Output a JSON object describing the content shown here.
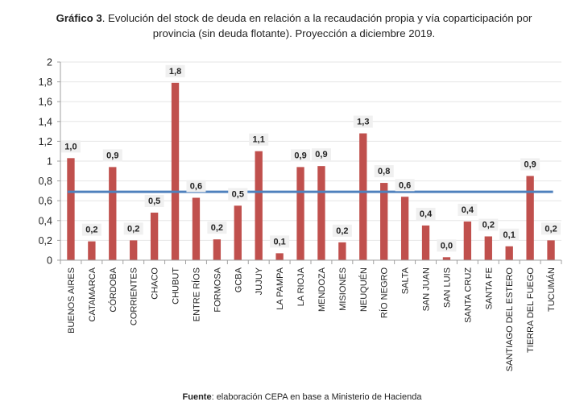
{
  "chart_data": {
    "type": "bar",
    "title_bold": "Gráfico 3",
    "title_line1": ". Evolución del stock de deuda en relación a la recaudación propia y vía coparticipación por",
    "title_line2": "provincia (sin deuda flotante). Proyección a diciembre 2019.",
    "xlabel": "",
    "ylabel": "",
    "ylim": [
      0,
      2
    ],
    "yticks": [
      "0",
      "0,2",
      "0,4",
      "0,6",
      "0,8",
      "1",
      "1,2",
      "1,4",
      "1,6",
      "1,8",
      "2"
    ],
    "ytick_values": [
      0,
      0.2,
      0.4,
      0.6,
      0.8,
      1.0,
      1.2,
      1.4,
      1.6,
      1.8,
      2.0
    ],
    "grid": true,
    "categories": [
      "BUENOS AIRES",
      "CATAMARCA",
      "CÓRDOBA",
      "CORRIENTES",
      "CHACO",
      "CHUBUT",
      "ENTRE RÍOS",
      "FORMOSA",
      "GCBA",
      "JUJUY",
      "LA PAMPA",
      "LA RIOJA",
      "MENDOZA",
      "MISIONES",
      "NEUQUÉN",
      "RÍO NEGRO",
      "SALTA",
      "SAN JUAN",
      "SAN LUIS",
      "SANTA CRUZ",
      "SANTA FE",
      "SANTIAGO DEL ESTERO",
      "TIERRA DEL FUEGO",
      "TUCUMÁN"
    ],
    "values": [
      1.03,
      0.19,
      0.94,
      0.2,
      0.48,
      1.79,
      0.63,
      0.21,
      0.55,
      1.1,
      0.07,
      0.94,
      0.95,
      0.18,
      1.28,
      0.78,
      0.64,
      0.35,
      0.03,
      0.39,
      0.24,
      0.14,
      0.85,
      0.2
    ],
    "labels": [
      "1,0",
      "0,2",
      "0,9",
      "0,2",
      "0,5",
      "1,8",
      "0,6",
      "0,2",
      "0,5",
      "1,1",
      "0,1",
      "0,9",
      "0,9",
      "0,2",
      "1,3",
      "0,8",
      "0,6",
      "0,4",
      "0,0",
      "0,4",
      "0,2",
      "0,1",
      "0,9",
      "0,2"
    ],
    "reference_line": {
      "value": 0.69
    },
    "colors": {
      "bar": "#c0504d",
      "reference_line": "#4f81bd",
      "grid": "#e6e6e6",
      "axis": "#a0a0a0"
    },
    "source_bold": "Fuente",
    "source_text": ": elaboración CEPA en base a Ministerio de Hacienda"
  }
}
